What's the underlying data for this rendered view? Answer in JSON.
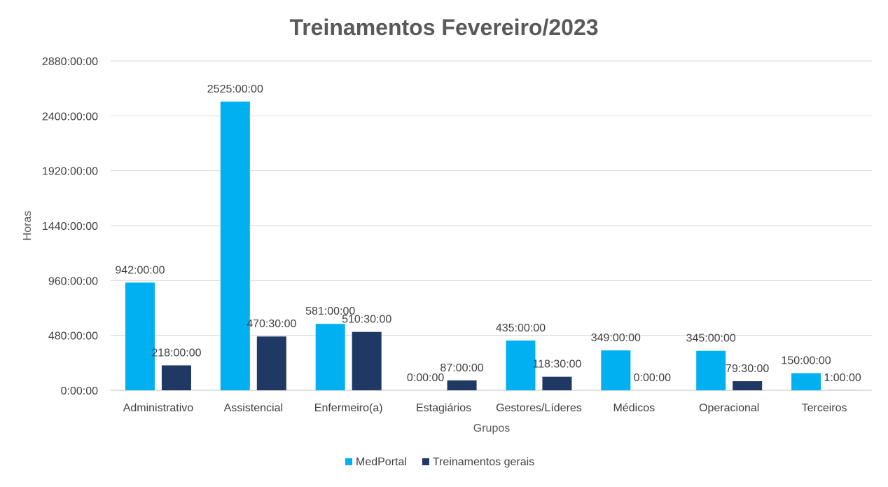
{
  "chart_data": {
    "type": "bar",
    "title": "Treinamentos Fevereiro/2023",
    "xlabel": "Grupos",
    "ylabel": "Horas",
    "categories": [
      "Administrativo",
      "Assistencial",
      "Enfermeiro(a)",
      "Estagiários",
      "Gestores/Líderes",
      "Médicos",
      "Operacional",
      "Terceiros"
    ],
    "ylim": [
      0,
      2880
    ],
    "y_ticks": [
      0,
      480,
      960,
      1440,
      1920,
      2400,
      2880
    ],
    "y_tick_labels": [
      "0:00:00",
      "480:00:00",
      "960:00:00",
      "1440:00:00",
      "1920:00:00",
      "2400:00:00",
      "2880:00:00"
    ],
    "grid": true,
    "legend_position": "bottom",
    "series": [
      {
        "name": "MedPortal",
        "color": "#00B0F0",
        "values": [
          942,
          2525,
          581,
          0,
          435,
          349,
          345,
          150
        ],
        "labels": [
          "942:00:00",
          "2525:00:00",
          "581:00:00",
          "0:00:00",
          "435:00:00",
          "349:00:00",
          "345:00:00",
          "150:00:00"
        ]
      },
      {
        "name": "Treinamentos gerais",
        "color": "#1F3864",
        "values": [
          218,
          470.5,
          510.5,
          87,
          118.5,
          0,
          79.5,
          1
        ],
        "labels": [
          "218:00:00",
          "470:30:00",
          "510:30:00",
          "87:00:00",
          "118:30:00",
          "0:00:00",
          "79:30:00",
          "1:00:00"
        ]
      }
    ]
  }
}
